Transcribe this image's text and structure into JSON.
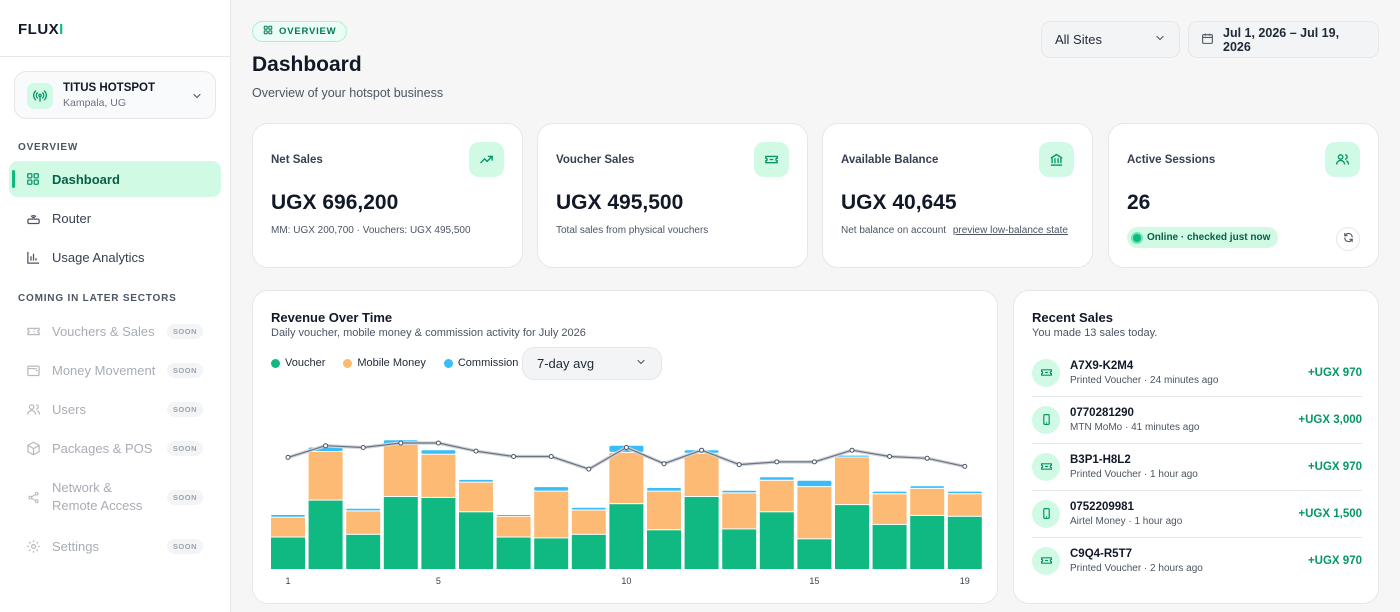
{
  "brand": {
    "name_main": "FLUX",
    "name_accent": "I"
  },
  "site": {
    "name": "TITUS HOTSPOT",
    "location": "Kampala, UG"
  },
  "nav": {
    "section_overview": "OVERVIEW",
    "section_later": "COMING IN LATER SECTORS",
    "items": [
      {
        "label": "Dashboard",
        "icon": "grid-icon",
        "active": true
      },
      {
        "label": "Router",
        "icon": "router-icon"
      },
      {
        "label": "Usage Analytics",
        "icon": "bar-chart-icon"
      }
    ],
    "later_items": [
      {
        "label": "Vouchers & Sales",
        "icon": "ticket-icon",
        "badge": "SOON"
      },
      {
        "label": "Money Movement",
        "icon": "wallet-icon",
        "badge": "SOON"
      },
      {
        "label": "Users",
        "icon": "users-icon",
        "badge": "SOON"
      },
      {
        "label": "Packages & POS",
        "icon": "package-icon",
        "badge": "SOON"
      },
      {
        "label": "Network & Remote Access",
        "icon": "share-icon",
        "badge": "SOON"
      },
      {
        "label": "Settings",
        "icon": "gear-icon",
        "badge": "SOON"
      }
    ]
  },
  "header": {
    "chip": "OVERVIEW",
    "title": "Dashboard",
    "subtitle": "Overview of your hotspot business",
    "site_filter": "All Sites",
    "date_range": "Jul 1, 2026 – Jul 19, 2026"
  },
  "stats": [
    {
      "label": "Net Sales",
      "value": "UGX 696,200",
      "sub": "MM: UGX 200,700 · Vouchers: UGX 495,500",
      "icon": "trending-up-icon"
    },
    {
      "label": "Voucher Sales",
      "value": "UGX 495,500",
      "sub": "Total sales from physical vouchers",
      "icon": "ticket-icon"
    },
    {
      "label": "Available Balance",
      "value": "UGX 40,645",
      "sub": "Net balance on account",
      "link": "preview low-balance state",
      "icon": "bank-icon"
    },
    {
      "label": "Active Sessions",
      "value": "26",
      "status": "Online · checked just now",
      "icon": "users-icon"
    }
  ],
  "revenue": {
    "title": "Revenue Over Time",
    "subtitle": "Daily voucher, mobile money & commission activity for July 2026",
    "avg_select": "7-day avg"
  },
  "chart_data": {
    "type": "bar",
    "stacked": true,
    "x": [
      1,
      2,
      3,
      4,
      5,
      6,
      7,
      8,
      9,
      10,
      11,
      12,
      13,
      14,
      15,
      16,
      17,
      18,
      19
    ],
    "x_tick_labels": [
      "1",
      "5",
      "10",
      "15",
      "19"
    ],
    "series": [
      {
        "name": "Voucher",
        "color": "#10b981",
        "values": [
          35,
          76,
          38,
          80,
          79,
          63,
          35,
          34,
          38,
          72,
          43,
          80,
          44,
          63,
          33,
          71,
          49,
          59,
          58
        ]
      },
      {
        "name": "Mobile Money",
        "color": "#fdba74",
        "values": [
          22,
          54,
          26,
          58,
          48,
          33,
          23,
          52,
          27,
          57,
          43,
          48,
          40,
          35,
          58,
          53,
          34,
          30,
          25
        ]
      },
      {
        "name": "Commission",
        "color": "#38bdf8",
        "values": [
          3,
          5,
          3,
          5,
          5,
          3,
          2,
          5,
          3,
          8,
          4,
          4,
          3,
          4,
          7,
          2,
          3,
          3,
          3
        ]
      }
    ],
    "avg_line": {
      "name": "7-day avg",
      "values": [
        124,
        137,
        135,
        140,
        140,
        131,
        125,
        125,
        111,
        135,
        117,
        132,
        116,
        119,
        119,
        132,
        125,
        123,
        114
      ]
    },
    "legend": "top-left",
    "grid": false
  },
  "recent": {
    "title": "Recent Sales",
    "subtitle": "You made 13 sales today.",
    "items": [
      {
        "ref": "A7X9-K2M4",
        "meta": "Printed Voucher · 24 minutes ago",
        "amount": "+UGX 970",
        "icon": "ticket-icon"
      },
      {
        "ref": "0770281290",
        "meta": "MTN MoMo · 41 minutes ago",
        "amount": "+UGX 3,000",
        "icon": "phone-icon"
      },
      {
        "ref": "B3P1-H8L2",
        "meta": "Printed Voucher · 1 hour ago",
        "amount": "+UGX 970",
        "icon": "ticket-icon"
      },
      {
        "ref": "0752209981",
        "meta": "Airtel Money · 1 hour ago",
        "amount": "+UGX 1,500",
        "icon": "phone-icon"
      },
      {
        "ref": "C9Q4-R5T7",
        "meta": "Printed Voucher · 2 hours ago",
        "amount": "+UGX 970",
        "icon": "ticket-icon"
      }
    ]
  }
}
